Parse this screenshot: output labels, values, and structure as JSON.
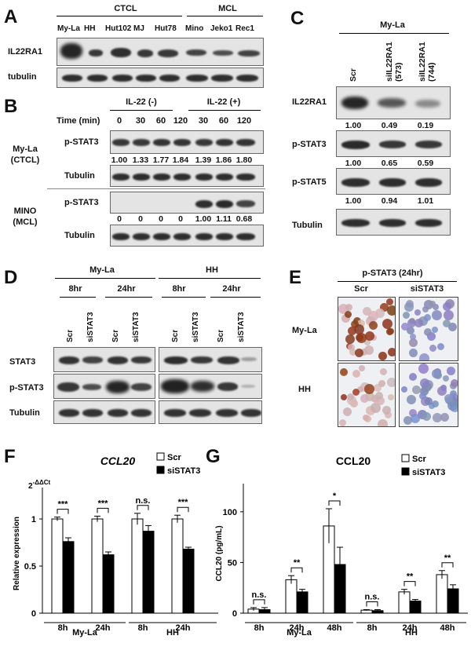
{
  "panels": {
    "a": "A",
    "b": "B",
    "c": "C",
    "d": "D",
    "e": "E",
    "f": "F",
    "g": "G"
  },
  "panel_a": {
    "group_ctcl": "CTCL",
    "group_mcl": "MCL",
    "lanes": [
      "My-La",
      "HH",
      "Hut102",
      "MJ",
      "Hut78",
      "Mino",
      "Jeko1",
      "Rec1"
    ],
    "rows": [
      "IL22RA1",
      "tubulin"
    ]
  },
  "panel_b": {
    "il22_neg": "IL-22 (-)",
    "il22_pos": "IL-22 (+)",
    "time_label": "Time (min)",
    "times": [
      "0",
      "30",
      "60",
      "120",
      "30",
      "60",
      "120"
    ],
    "myla_label": "My-La\n(CTCL)",
    "mino_label": "MINO\n(MCL)",
    "row_pstat3": "p-STAT3",
    "row_tubulin": "Tubulin",
    "myla_quant": [
      "1.00",
      "1.33",
      "1.77",
      "1.84",
      "1.39",
      "1.86",
      "1.80"
    ],
    "mino_quant": [
      "0",
      "0",
      "0",
      "0",
      "1.00",
      "1.11",
      "0.68"
    ]
  },
  "panel_c": {
    "cell_line": "My-La",
    "lanes": [
      "Scr",
      "siIL22RA1\n(573)",
      "siIL22RA1\n(744)"
    ],
    "rows": [
      "IL22RA1",
      "p-STAT3",
      "p-STAT5",
      "Tubulin"
    ],
    "q_il22ra1": [
      "1.00",
      "0.49",
      "0.19"
    ],
    "q_pstat3": [
      "1.00",
      "0.65",
      "0.59"
    ],
    "q_pstat5": [
      "1.00",
      "0.94",
      "1.01"
    ]
  },
  "panel_d": {
    "myla": "My-La",
    "hh": "HH",
    "t8": "8hr",
    "t24": "24hr",
    "lanes": [
      "Scr",
      "siSTAT3",
      "Scr",
      "siSTAT3"
    ],
    "rows": [
      "STAT3",
      "p-STAT3",
      "Tubulin"
    ]
  },
  "panel_e": {
    "title": "p-STAT3 (24hr)",
    "scr": "Scr",
    "sistat3": "siSTAT3",
    "myla": "My-La",
    "hh": "HH"
  },
  "panel_f": {
    "title": "CCL20",
    "ylabel": "Relative expression",
    "ddct": "2",
    "ddct_sup": "-ΔΔCt",
    "legend_scr": "Scr",
    "legend_si": "siSTAT3",
    "group_myla": "My-La",
    "group_hh": "HH"
  },
  "panel_g": {
    "title": "CCL20",
    "ylabel": "CCL20 (pg/mL)",
    "legend_scr": "Scr",
    "legend_si": "siSTAT3",
    "group_myla": "My-La",
    "group_hh": "HH"
  },
  "chart_data": [
    {
      "type": "bar",
      "title": "CCL20",
      "ylabel": "Relative expression",
      "categories": [
        "8h",
        "24h",
        "8h",
        "24h"
      ],
      "groups": [
        "My-La",
        "HH"
      ],
      "ylim": [
        0,
        1.25
      ],
      "yticks": [
        0,
        0.5,
        1
      ],
      "series": [
        {
          "name": "Scr",
          "values": [
            1.0,
            1.0,
            1.0,
            1.0
          ],
          "errors": [
            0.02,
            0.03,
            0.06,
            0.04
          ],
          "color": "#ffffff"
        },
        {
          "name": "siSTAT3",
          "values": [
            0.76,
            0.62,
            0.87,
            0.68
          ],
          "errors": [
            0.04,
            0.03,
            0.06,
            0.02
          ],
          "color": "#000000"
        }
      ],
      "significance": [
        "***",
        "***",
        "n.s.",
        "***"
      ]
    },
    {
      "type": "bar",
      "title": "CCL20",
      "ylabel": "CCL20 (pg/mL)",
      "categories": [
        "8h",
        "24h",
        "48h",
        "8h",
        "24h",
        "48h"
      ],
      "groups": [
        "My-La",
        "HH"
      ],
      "ylim": [
        0,
        120
      ],
      "yticks": [
        0,
        50,
        100
      ],
      "series": [
        {
          "name": "Scr",
          "values": [
            4,
            33,
            86,
            3,
            21,
            38
          ],
          "errors": [
            1.5,
            4,
            17,
            0.5,
            2.5,
            4
          ],
          "color": "#ffffff"
        },
        {
          "name": "siSTAT3",
          "values": [
            3.5,
            21,
            48,
            2.5,
            12,
            24
          ],
          "errors": [
            2,
            2.5,
            17,
            1,
            1.5,
            4
          ],
          "color": "#000000"
        }
      ],
      "significance": [
        "n.s.",
        "**",
        "*",
        "n.s.",
        "**",
        "**"
      ]
    }
  ]
}
